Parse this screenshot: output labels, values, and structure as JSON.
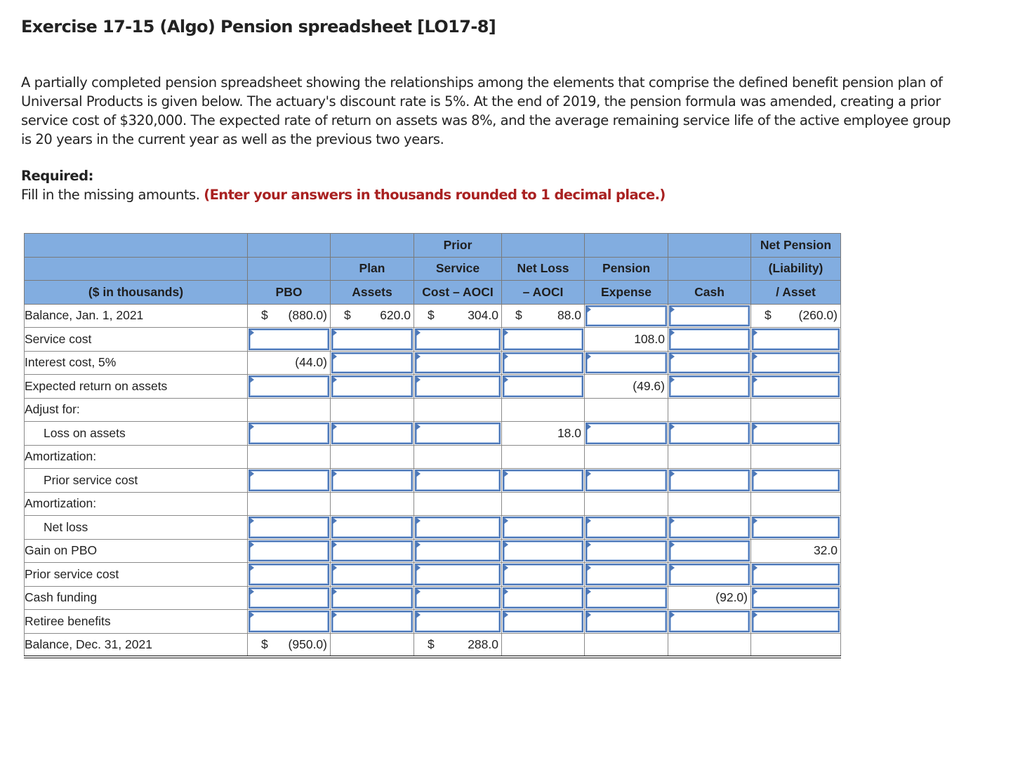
{
  "title": "Exercise 17-15 (Algo) Pension spreadsheet [LO17-8]",
  "intro": "A partially completed pension spreadsheet showing the relationships among the elements that comprise the defined benefit pension plan of Universal Products is given below. The actuary's discount rate is 5%. At the end of 2019, the pension formula was amended, creating a prior service cost of $320,000. The expected rate of return on assets was 8%, and the average remaining service life of the active employee group is 20 years in the current year as well as the previous two years.",
  "required": {
    "label": "Required:",
    "text": "Fill in the missing amounts.",
    "emphasis": "(Enter your answers in thousands rounded to 1 decimal place.)"
  },
  "colors": {
    "header_bg": "#82ade0",
    "input_border": "#4d78b8",
    "emphasis_red": "#a92121"
  },
  "table": {
    "headers": [
      [
        "",
        "",
        "",
        "Prior",
        "",
        "",
        "",
        "Net Pension"
      ],
      [
        "",
        "",
        "Plan",
        "Service",
        "Net Loss",
        "Pension",
        "",
        "(Liability)"
      ],
      [
        "($ in thousands)",
        "PBO",
        "Assets",
        "Cost – AOCI",
        "– AOCI",
        "Expense",
        "Cash",
        "/ Asset"
      ]
    ],
    "rows": [
      {
        "label": "Balance, Jan. 1, 2021",
        "indent": false,
        "cells": [
          {
            "type": "static",
            "dollar": "$",
            "value": "(880.0)"
          },
          {
            "type": "static",
            "dollar": "$",
            "value": "620.0"
          },
          {
            "type": "static",
            "dollar": "$",
            "value": "304.0"
          },
          {
            "type": "static",
            "dollar": "$",
            "value": "88.0"
          },
          {
            "type": "input",
            "value": ""
          },
          {
            "type": "input",
            "value": ""
          },
          {
            "type": "static",
            "dollar": "$",
            "value": "(260.0)"
          }
        ]
      },
      {
        "label": "Service cost",
        "indent": false,
        "cells": [
          {
            "type": "input",
            "value": ""
          },
          {
            "type": "input",
            "value": ""
          },
          {
            "type": "input",
            "value": ""
          },
          {
            "type": "input",
            "value": ""
          },
          {
            "type": "static",
            "dollar": "",
            "value": "108.0"
          },
          {
            "type": "input",
            "value": ""
          },
          {
            "type": "input",
            "value": ""
          }
        ]
      },
      {
        "label": "Interest cost, 5%",
        "indent": false,
        "cells": [
          {
            "type": "static",
            "dollar": "",
            "value": "(44.0)"
          },
          {
            "type": "input",
            "value": ""
          },
          {
            "type": "input",
            "value": ""
          },
          {
            "type": "input",
            "value": ""
          },
          {
            "type": "input",
            "value": ""
          },
          {
            "type": "input",
            "value": ""
          },
          {
            "type": "input",
            "value": ""
          }
        ]
      },
      {
        "label": "Expected return on assets",
        "indent": false,
        "cells": [
          {
            "type": "input",
            "value": ""
          },
          {
            "type": "input",
            "value": ""
          },
          {
            "type": "input",
            "value": ""
          },
          {
            "type": "input",
            "value": ""
          },
          {
            "type": "static",
            "dollar": "",
            "value": "(49.6)"
          },
          {
            "type": "input",
            "value": ""
          },
          {
            "type": "input",
            "value": ""
          }
        ]
      },
      {
        "label": "Adjust for:",
        "indent": false,
        "cells": [
          {
            "type": "empty"
          },
          {
            "type": "empty"
          },
          {
            "type": "empty"
          },
          {
            "type": "empty"
          },
          {
            "type": "empty"
          },
          {
            "type": "empty"
          },
          {
            "type": "empty"
          }
        ]
      },
      {
        "label": "Loss on assets",
        "indent": true,
        "cells": [
          {
            "type": "input",
            "value": ""
          },
          {
            "type": "input",
            "value": ""
          },
          {
            "type": "input",
            "value": ""
          },
          {
            "type": "static",
            "dollar": "",
            "value": "18.0"
          },
          {
            "type": "input",
            "value": ""
          },
          {
            "type": "input",
            "value": ""
          },
          {
            "type": "input",
            "value": ""
          }
        ]
      },
      {
        "label": "Amortization:",
        "indent": false,
        "cells": [
          {
            "type": "empty"
          },
          {
            "type": "empty"
          },
          {
            "type": "empty"
          },
          {
            "type": "empty"
          },
          {
            "type": "empty"
          },
          {
            "type": "empty"
          },
          {
            "type": "empty"
          }
        ]
      },
      {
        "label": "Prior service cost",
        "indent": true,
        "cells": [
          {
            "type": "input",
            "value": ""
          },
          {
            "type": "input",
            "value": ""
          },
          {
            "type": "input",
            "value": ""
          },
          {
            "type": "input",
            "value": ""
          },
          {
            "type": "input",
            "value": ""
          },
          {
            "type": "input",
            "value": ""
          },
          {
            "type": "input",
            "value": ""
          }
        ]
      },
      {
        "label": "Amortization:",
        "indent": false,
        "cells": [
          {
            "type": "empty"
          },
          {
            "type": "empty"
          },
          {
            "type": "empty"
          },
          {
            "type": "empty"
          },
          {
            "type": "empty"
          },
          {
            "type": "empty"
          },
          {
            "type": "empty"
          }
        ]
      },
      {
        "label": "Net loss",
        "indent": true,
        "cells": [
          {
            "type": "input",
            "value": ""
          },
          {
            "type": "input",
            "value": ""
          },
          {
            "type": "input",
            "value": ""
          },
          {
            "type": "input",
            "value": ""
          },
          {
            "type": "input",
            "value": ""
          },
          {
            "type": "input",
            "value": ""
          },
          {
            "type": "input",
            "value": ""
          }
        ]
      },
      {
        "label": "Gain on PBO",
        "indent": false,
        "cells": [
          {
            "type": "input",
            "value": ""
          },
          {
            "type": "input",
            "value": ""
          },
          {
            "type": "input",
            "value": ""
          },
          {
            "type": "input",
            "value": ""
          },
          {
            "type": "input",
            "value": ""
          },
          {
            "type": "input",
            "value": ""
          },
          {
            "type": "static",
            "dollar": "",
            "value": "32.0"
          }
        ]
      },
      {
        "label": "Prior service cost",
        "indent": false,
        "cells": [
          {
            "type": "input",
            "value": ""
          },
          {
            "type": "input",
            "value": ""
          },
          {
            "type": "input",
            "value": ""
          },
          {
            "type": "input",
            "value": ""
          },
          {
            "type": "input",
            "value": ""
          },
          {
            "type": "input",
            "value": ""
          },
          {
            "type": "input",
            "value": ""
          }
        ]
      },
      {
        "label": "Cash funding",
        "indent": false,
        "cells": [
          {
            "type": "input",
            "value": ""
          },
          {
            "type": "input",
            "value": ""
          },
          {
            "type": "input",
            "value": ""
          },
          {
            "type": "input",
            "value": ""
          },
          {
            "type": "input",
            "value": ""
          },
          {
            "type": "static",
            "dollar": "",
            "value": "(92.0)"
          },
          {
            "type": "input",
            "value": ""
          }
        ]
      },
      {
        "label": "Retiree benefits",
        "indent": false,
        "cells": [
          {
            "type": "input",
            "value": ""
          },
          {
            "type": "input",
            "value": ""
          },
          {
            "type": "input",
            "value": ""
          },
          {
            "type": "input",
            "value": ""
          },
          {
            "type": "input",
            "value": ""
          },
          {
            "type": "input",
            "value": ""
          },
          {
            "type": "input",
            "value": ""
          }
        ]
      },
      {
        "label": "Balance, Dec. 31, 2021",
        "indent": false,
        "final": true,
        "cells": [
          {
            "type": "static",
            "dollar": "$",
            "value": "(950.0)"
          },
          {
            "type": "empty"
          },
          {
            "type": "static",
            "dollar": "$",
            "value": "288.0"
          },
          {
            "type": "empty"
          },
          {
            "type": "empty"
          },
          {
            "type": "empty"
          },
          {
            "type": "empty"
          }
        ]
      }
    ]
  }
}
